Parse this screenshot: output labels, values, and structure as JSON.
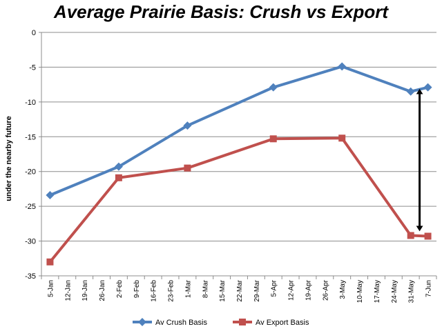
{
  "chart_data": {
    "type": "line",
    "title": "Average Prairie Basis: Crush vs Export",
    "xlabel": "",
    "ylabel": "under the nearby future",
    "ylim": [
      -35,
      0
    ],
    "yticks": [
      0,
      -5,
      -10,
      -15,
      -20,
      -25,
      -30,
      -35
    ],
    "grid": "horizontal",
    "legend_position": "bottom",
    "categories": [
      "5-Jan",
      "12-Jan",
      "19-Jan",
      "26-Jan",
      "2-Feb",
      "9-Feb",
      "16-Feb",
      "23-Feb",
      "1-Mar",
      "8-Mar",
      "15-Mar",
      "22-Mar",
      "29-Mar",
      "5-Apr",
      "12-Apr",
      "19-Apr",
      "26-Apr",
      "3-May",
      "10-May",
      "17-May",
      "24-May",
      "31-May",
      "7-Jun"
    ],
    "series": [
      {
        "name": "Av Crush Basis",
        "color": "#4F81BD",
        "marker": "diamond",
        "points": [
          {
            "x": "5-Jan",
            "y": -23.4
          },
          {
            "x": "2-Feb",
            "y": -19.3
          },
          {
            "x": "1-Mar",
            "y": -13.4
          },
          {
            "x": "5-Apr",
            "y": -7.9
          },
          {
            "x": "3-May",
            "y": -4.9
          },
          {
            "x": "31-May",
            "y": -8.5
          },
          {
            "x": "7-Jun",
            "y": -7.9
          }
        ]
      },
      {
        "name": "Av Export Basis",
        "color": "#C0504D",
        "marker": "square",
        "points": [
          {
            "x": "5-Jan",
            "y": -33.0
          },
          {
            "x": "2-Feb",
            "y": -20.9
          },
          {
            "x": "1-Mar",
            "y": -19.5
          },
          {
            "x": "5-Apr",
            "y": -15.3
          },
          {
            "x": "3-May",
            "y": -15.2
          },
          {
            "x": "31-May",
            "y": -29.2
          },
          {
            "x": "7-Jun",
            "y": -29.3
          }
        ]
      }
    ],
    "annotations": [
      {
        "type": "double-arrow",
        "x": "7-Jun",
        "y_from": -8.5,
        "y_to": -28.2,
        "color": "#000000"
      }
    ]
  }
}
